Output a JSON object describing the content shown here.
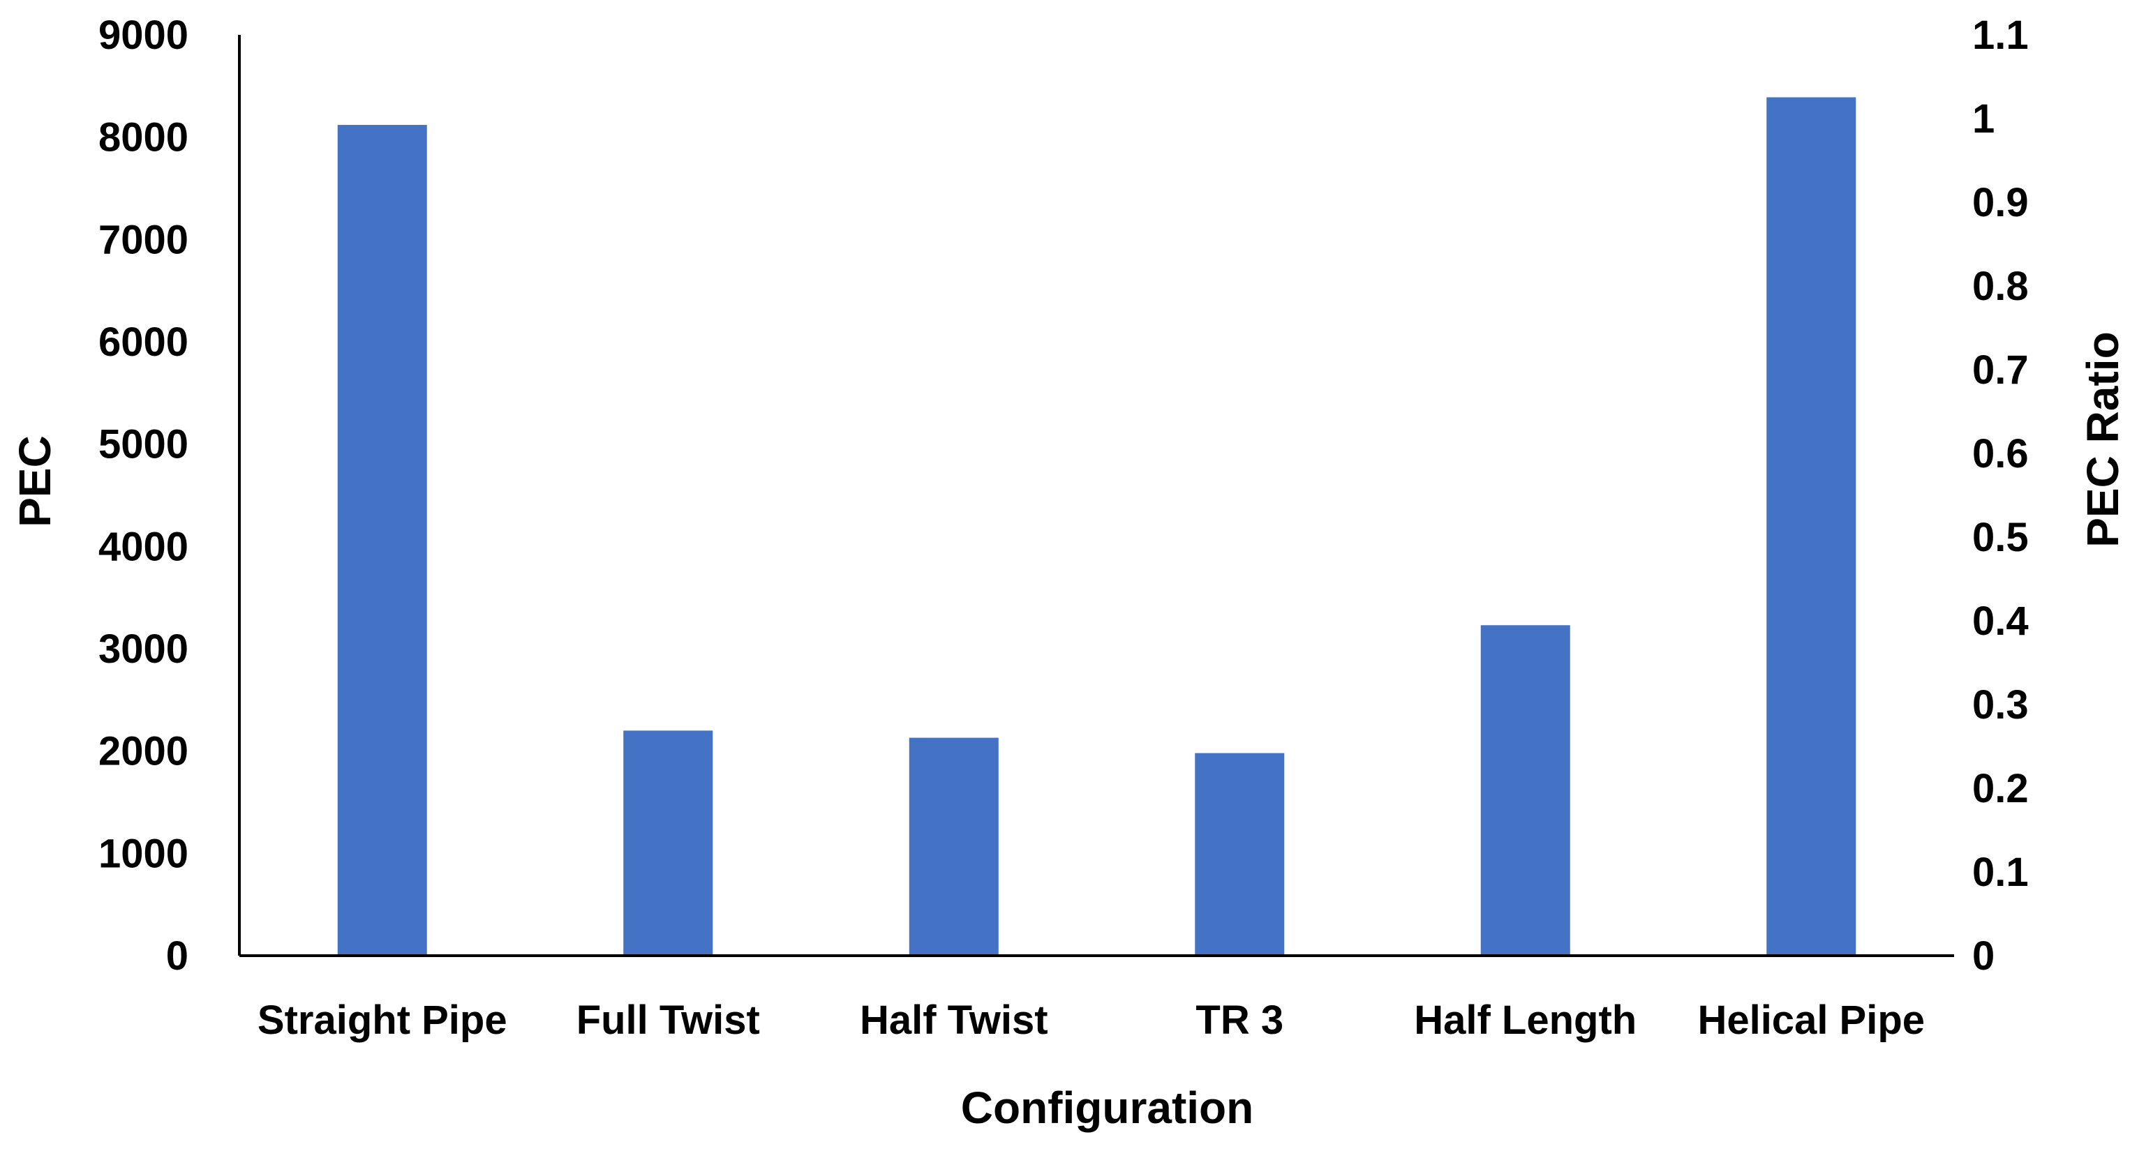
{
  "chart_data": {
    "type": "bar",
    "title": "",
    "xlabel": "Configuration",
    "ylabel": "PEC",
    "y2label": "PEC Ratio",
    "categories": [
      "Straight Pipe",
      "Full Twist",
      "Half Twist",
      "TR 3",
      "Half Length",
      "Helical Pipe"
    ],
    "series": [
      {
        "values": [
          8120,
          2200,
          2130,
          1980,
          3230,
          8390
        ]
      }
    ],
    "ylim": [
      0,
      9000
    ],
    "yticks": [
      "0",
      "1000",
      "2000",
      "3000",
      "4000",
      "5000",
      "6000",
      "7000",
      "8000",
      "9000"
    ],
    "y2lim": [
      0,
      1.1
    ],
    "y2ticks": [
      "0",
      "0.1",
      "0.2",
      "0.3",
      "0.4",
      "0.5",
      "0.6",
      "0.7",
      "0.8",
      "0.9",
      "1",
      "1.1"
    ],
    "grid": false,
    "bar_color": "#4472C4",
    "axis_color": "#000000"
  }
}
